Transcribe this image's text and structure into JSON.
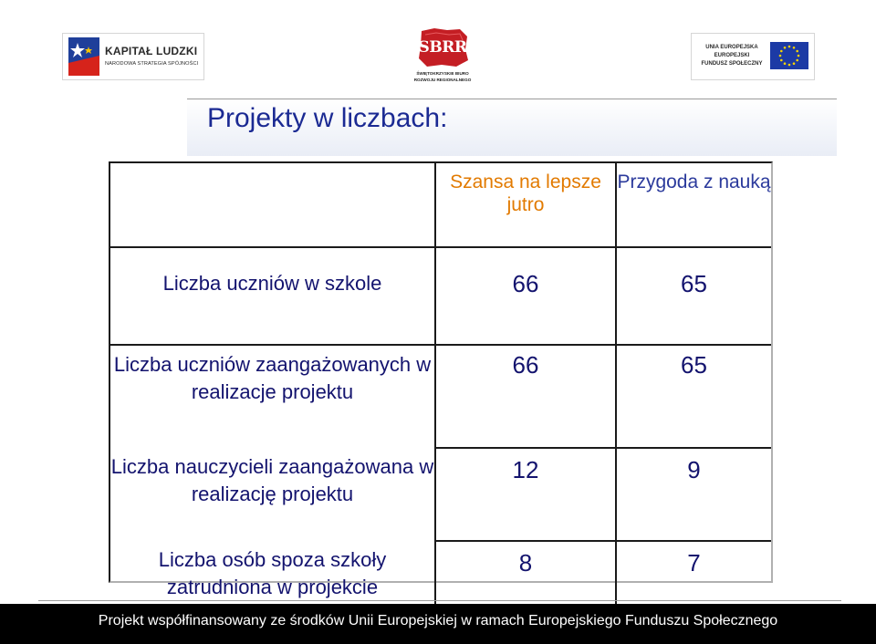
{
  "logos": {
    "kapital_ludzki": {
      "title": "KAPITAŁ LUDZKI",
      "subtitle": "NARODOWA STRATEGIA SPÓJNOŚCI"
    },
    "sbrr": {
      "word": "SBRR",
      "line1": "ŚWIĘTOKRZYSKIE BIURO",
      "line2": "ROZWOJU REGIONALNEGO"
    },
    "eu": {
      "line1": "UNIA EUROPEJSKA",
      "line2": "EUROPEJSKI",
      "line3": "FUNDUSZ SPOŁECZNY"
    }
  },
  "page": {
    "title": "Projekty w liczbach:"
  },
  "table": {
    "headers": [
      "",
      "Szansa na lepsze jutro",
      "Przygoda z nauką"
    ],
    "rows": [
      {
        "label": "Liczba uczniów w szkole",
        "values": [
          "66",
          "65"
        ]
      },
      {
        "label": "Liczba uczniów zaangażowanych w realizacje projektu",
        "values": [
          "66",
          "65"
        ]
      },
      {
        "label": "Liczba nauczycieli zaangażowana w realizację projektu",
        "values": [
          "12",
          "9"
        ]
      },
      {
        "label": "Liczba osób spoza szkoły zatrudniona w projekcie",
        "values": [
          "8",
          "7"
        ]
      }
    ]
  },
  "footer": {
    "text": "Projekt współfinansowany ze środków Unii Europejskiej w ramach Europejskiego Funduszu Społecznego"
  },
  "colors": {
    "title": "#1b2a93",
    "table_text": "#13136e",
    "header_orange": "#e27a00",
    "header_blue": "#2b3a9c",
    "footer_bg": "#000000"
  }
}
